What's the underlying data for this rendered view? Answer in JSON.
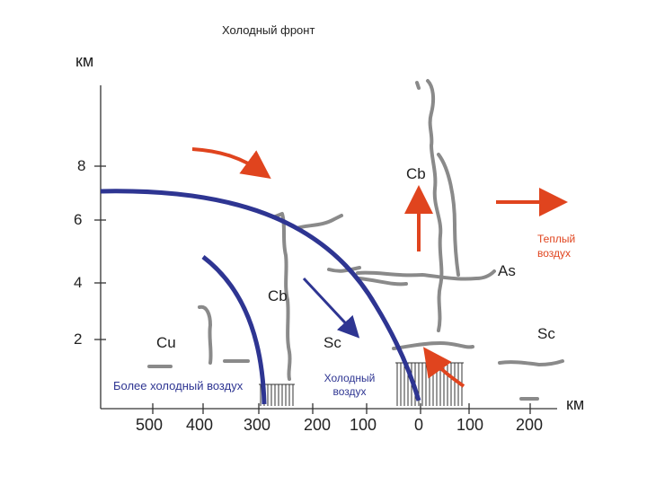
{
  "title": "Холодный фронт",
  "axes": {
    "y_unit": "км",
    "x_unit": "км",
    "y_ticks": [
      "8",
      "6",
      "4",
      "2"
    ],
    "x_ticks": [
      "500",
      "400",
      "300",
      "200",
      "100",
      "0",
      "100",
      "200"
    ]
  },
  "clouds": {
    "cb_top": "Cb",
    "cb_mid": "Cb",
    "as": "As",
    "sc_right": "Sc",
    "sc_mid": "Sc",
    "cu": "Cu"
  },
  "air_masses": {
    "warm_air": "Теплый воздух",
    "cold_air": "Холодный воздух",
    "colder_air": "Более холодный воздух"
  },
  "colors": {
    "front": "#2e3592",
    "warm_arrow": "#e0441e",
    "cloud": "#8a8a8a",
    "axis": "#333333"
  }
}
